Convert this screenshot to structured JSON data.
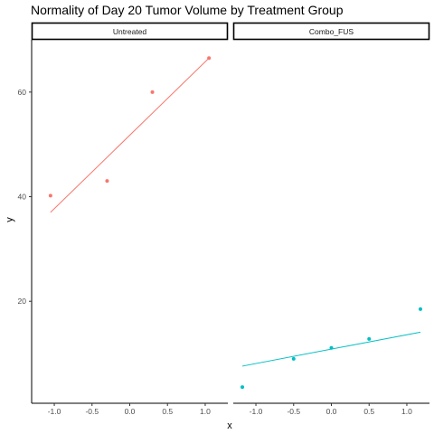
{
  "chart_data": {
    "type": "scatter",
    "title": "Normality of Day 20 Tumor Volume by Treatment Group",
    "xlabel": "x",
    "ylabel": "y",
    "xlim": [
      -1.3,
      1.3
    ],
    "ylim": [
      0.5,
      70
    ],
    "x_ticks": [
      -1.0,
      -0.5,
      0.0,
      0.5,
      1.0
    ],
    "x_tick_labels": [
      "-1.0",
      "-0.5",
      "0.0",
      "0.5",
      "1.0"
    ],
    "y_ticks": [
      20,
      40,
      60
    ],
    "y_tick_labels": [
      "20",
      "40",
      "60"
    ],
    "grid": false,
    "legend": "none",
    "panels": [
      {
        "strip": "Untreated",
        "color": "#F8766D",
        "points": [
          {
            "x": -1.05,
            "y": 40.2
          },
          {
            "x": -0.3,
            "y": 43.0
          },
          {
            "x": 0.3,
            "y": 60.0
          },
          {
            "x": 1.05,
            "y": 66.5
          }
        ],
        "line": {
          "x": [
            -1.05,
            1.05
          ],
          "y": [
            37.0,
            66.5
          ]
        }
      },
      {
        "strip": "Combo_FUS",
        "color": "#00BFC4",
        "points": [
          {
            "x": -1.18,
            "y": 3.6
          },
          {
            "x": -0.5,
            "y": 9.0
          },
          {
            "x": 0.0,
            "y": 11.1
          },
          {
            "x": 0.5,
            "y": 12.8
          },
          {
            "x": 1.18,
            "y": 18.5
          }
        ],
        "line": {
          "x": [
            -1.18,
            1.18
          ],
          "y": [
            7.6,
            14.1
          ]
        }
      }
    ]
  }
}
